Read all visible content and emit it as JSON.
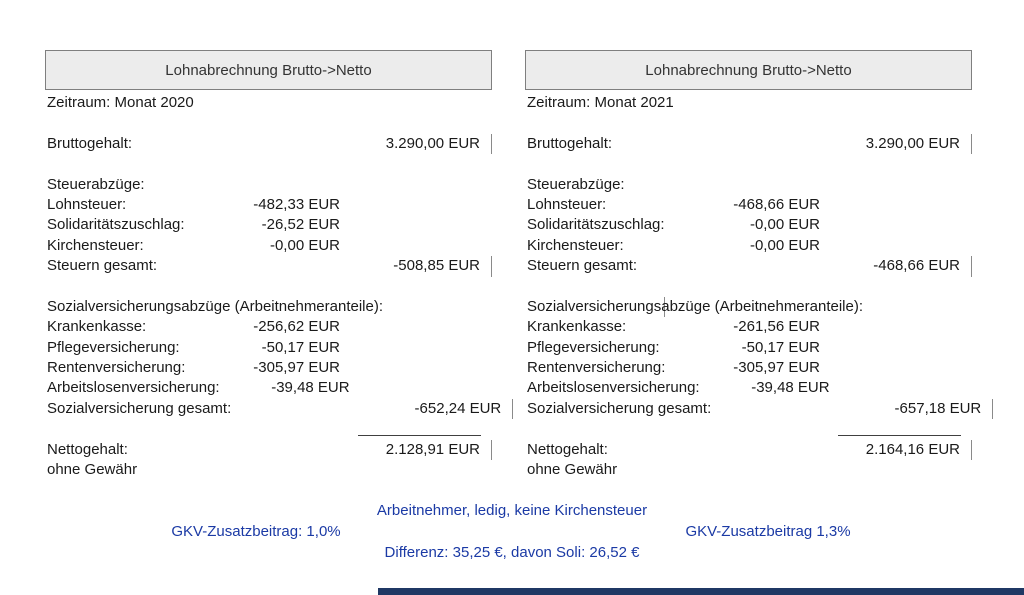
{
  "panels": [
    {
      "title": "Lohnabrechnung Brutto->Netto",
      "period": "Zeitraum: Monat 2020",
      "gross_label": "Bruttogehalt:",
      "gross_value": "3.290,00 EUR",
      "tax_section": "Steuerabzüge:",
      "tax_rows": [
        {
          "label": "Lohnsteuer:",
          "value": "-482,33 EUR"
        },
        {
          "label": "Solidaritätszuschlag:",
          "value": "-26,52 EUR"
        },
        {
          "label": "Kirchensteuer:",
          "value": "-0,00 EUR"
        }
      ],
      "tax_total_label": "Steuern gesamt:",
      "tax_total_value": "-508,85 EUR",
      "social_section": "Sozialversicherungsabzüge (Arbeitnehmeranteile):",
      "social_rows": [
        {
          "label": "Krankenkasse:",
          "value": "-256,62 EUR"
        },
        {
          "label": "Pflegeversicherung:",
          "value": "-50,17 EUR"
        },
        {
          "label": "Rentenversicherung:",
          "value": "-305,97 EUR"
        },
        {
          "label": "Arbeitslosenversicherung:",
          "value": "-39,48 EUR"
        }
      ],
      "social_total_label": "Sozialversicherung gesamt:",
      "social_total_value": "-652,24 EUR",
      "net_label": "Nettogehalt:",
      "net_value": "2.128,91 EUR",
      "disclaimer": "ohne Gewähr"
    },
    {
      "title": "Lohnabrechnung Brutto->Netto",
      "period": "Zeitraum: Monat 2021",
      "gross_label": "Bruttogehalt:",
      "gross_value": "3.290,00 EUR",
      "tax_section": "Steuerabzüge:",
      "tax_rows": [
        {
          "label": "Lohnsteuer:",
          "value": "-468,66 EUR"
        },
        {
          "label": "Solidaritätszuschlag:",
          "value": "-0,00 EUR"
        },
        {
          "label": "Kirchensteuer:",
          "value": "-0,00 EUR"
        }
      ],
      "tax_total_label": "Steuern gesamt:",
      "tax_total_value": "-468,66 EUR",
      "social_section": "Sozialversicherungsabzüge (Arbeitnehmeranteile):",
      "social_rows": [
        {
          "label": "Krankenkasse:",
          "value": "-261,56 EUR"
        },
        {
          "label": "Pflegeversicherung:",
          "value": "-50,17 EUR"
        },
        {
          "label": "Rentenversicherung:",
          "value": "-305,97 EUR"
        },
        {
          "label": "Arbeitslosenversicherung:",
          "value": "-39,48 EUR"
        }
      ],
      "social_total_label": "Sozialversicherung gesamt:",
      "social_total_value": "-657,18 EUR",
      "net_label": "Nettogehalt:",
      "net_value": "2.164,16 EUR",
      "disclaimer": "ohne Gewähr"
    }
  ],
  "footer": {
    "line1": "Arbeitnehmer, ledig, keine Kirchensteuer",
    "gkv_left": "GKV-Zusatzbeitrag: 1,0%",
    "gkv_right": "GKV-Zusatzbeitrag 1,3%",
    "line3": "Differenz: 35,25 €, davon Soli: 26,52 €"
  },
  "colors": {
    "footer_text": "#1b3aa5",
    "panel_header_bg": "#ececec",
    "panel_border": "#7f7f7f",
    "bottom_bar": "#1f3864"
  }
}
